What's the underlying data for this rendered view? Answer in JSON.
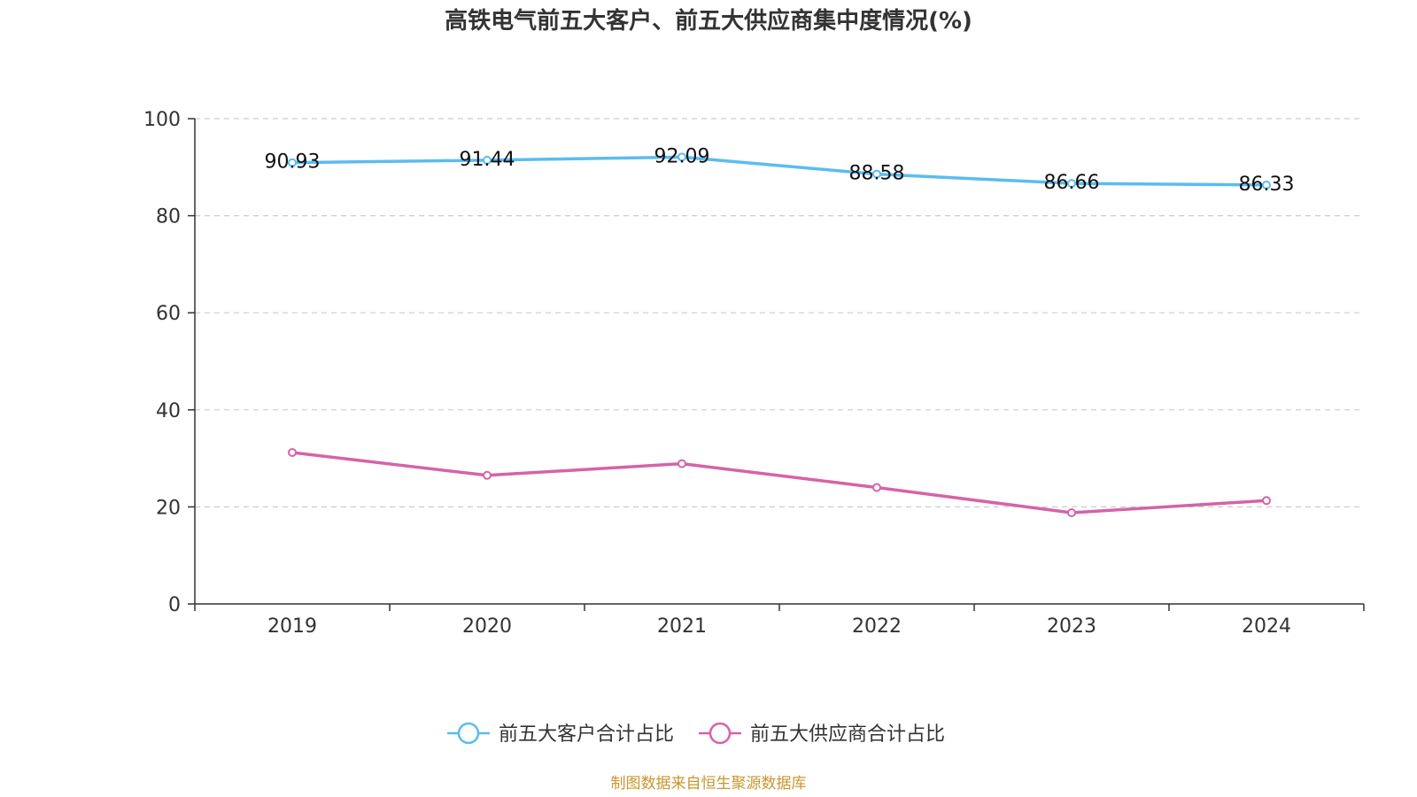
{
  "chart_data": {
    "type": "line",
    "title": "高铁电气前五大客户、前五大供应商集中度情况(%)",
    "categories": [
      "2019",
      "2020",
      "2021",
      "2022",
      "2023",
      "2024"
    ],
    "ylim": [
      0,
      100
    ],
    "yticks": [
      "0",
      "20",
      "40",
      "60",
      "80",
      "100"
    ],
    "grid": true,
    "legend_position": "bottom-center",
    "series": [
      {
        "name": "前五大客户合计占比",
        "color": "#5bbcf0",
        "values": [
          90.93,
          91.44,
          92.09,
          88.58,
          86.66,
          86.33
        ],
        "labels": [
          "90.93",
          "91.44",
          "92.09",
          "88.58",
          "86.66",
          "86.33"
        ]
      },
      {
        "name": "前五大供应商合计占比",
        "color": "#d563a8",
        "values": [
          31.2,
          26.5,
          28.9,
          24.0,
          18.8,
          21.3
        ]
      }
    ]
  },
  "source": {
    "text": "制图数据来自恒生聚源数据库",
    "color": "#c9962f"
  }
}
